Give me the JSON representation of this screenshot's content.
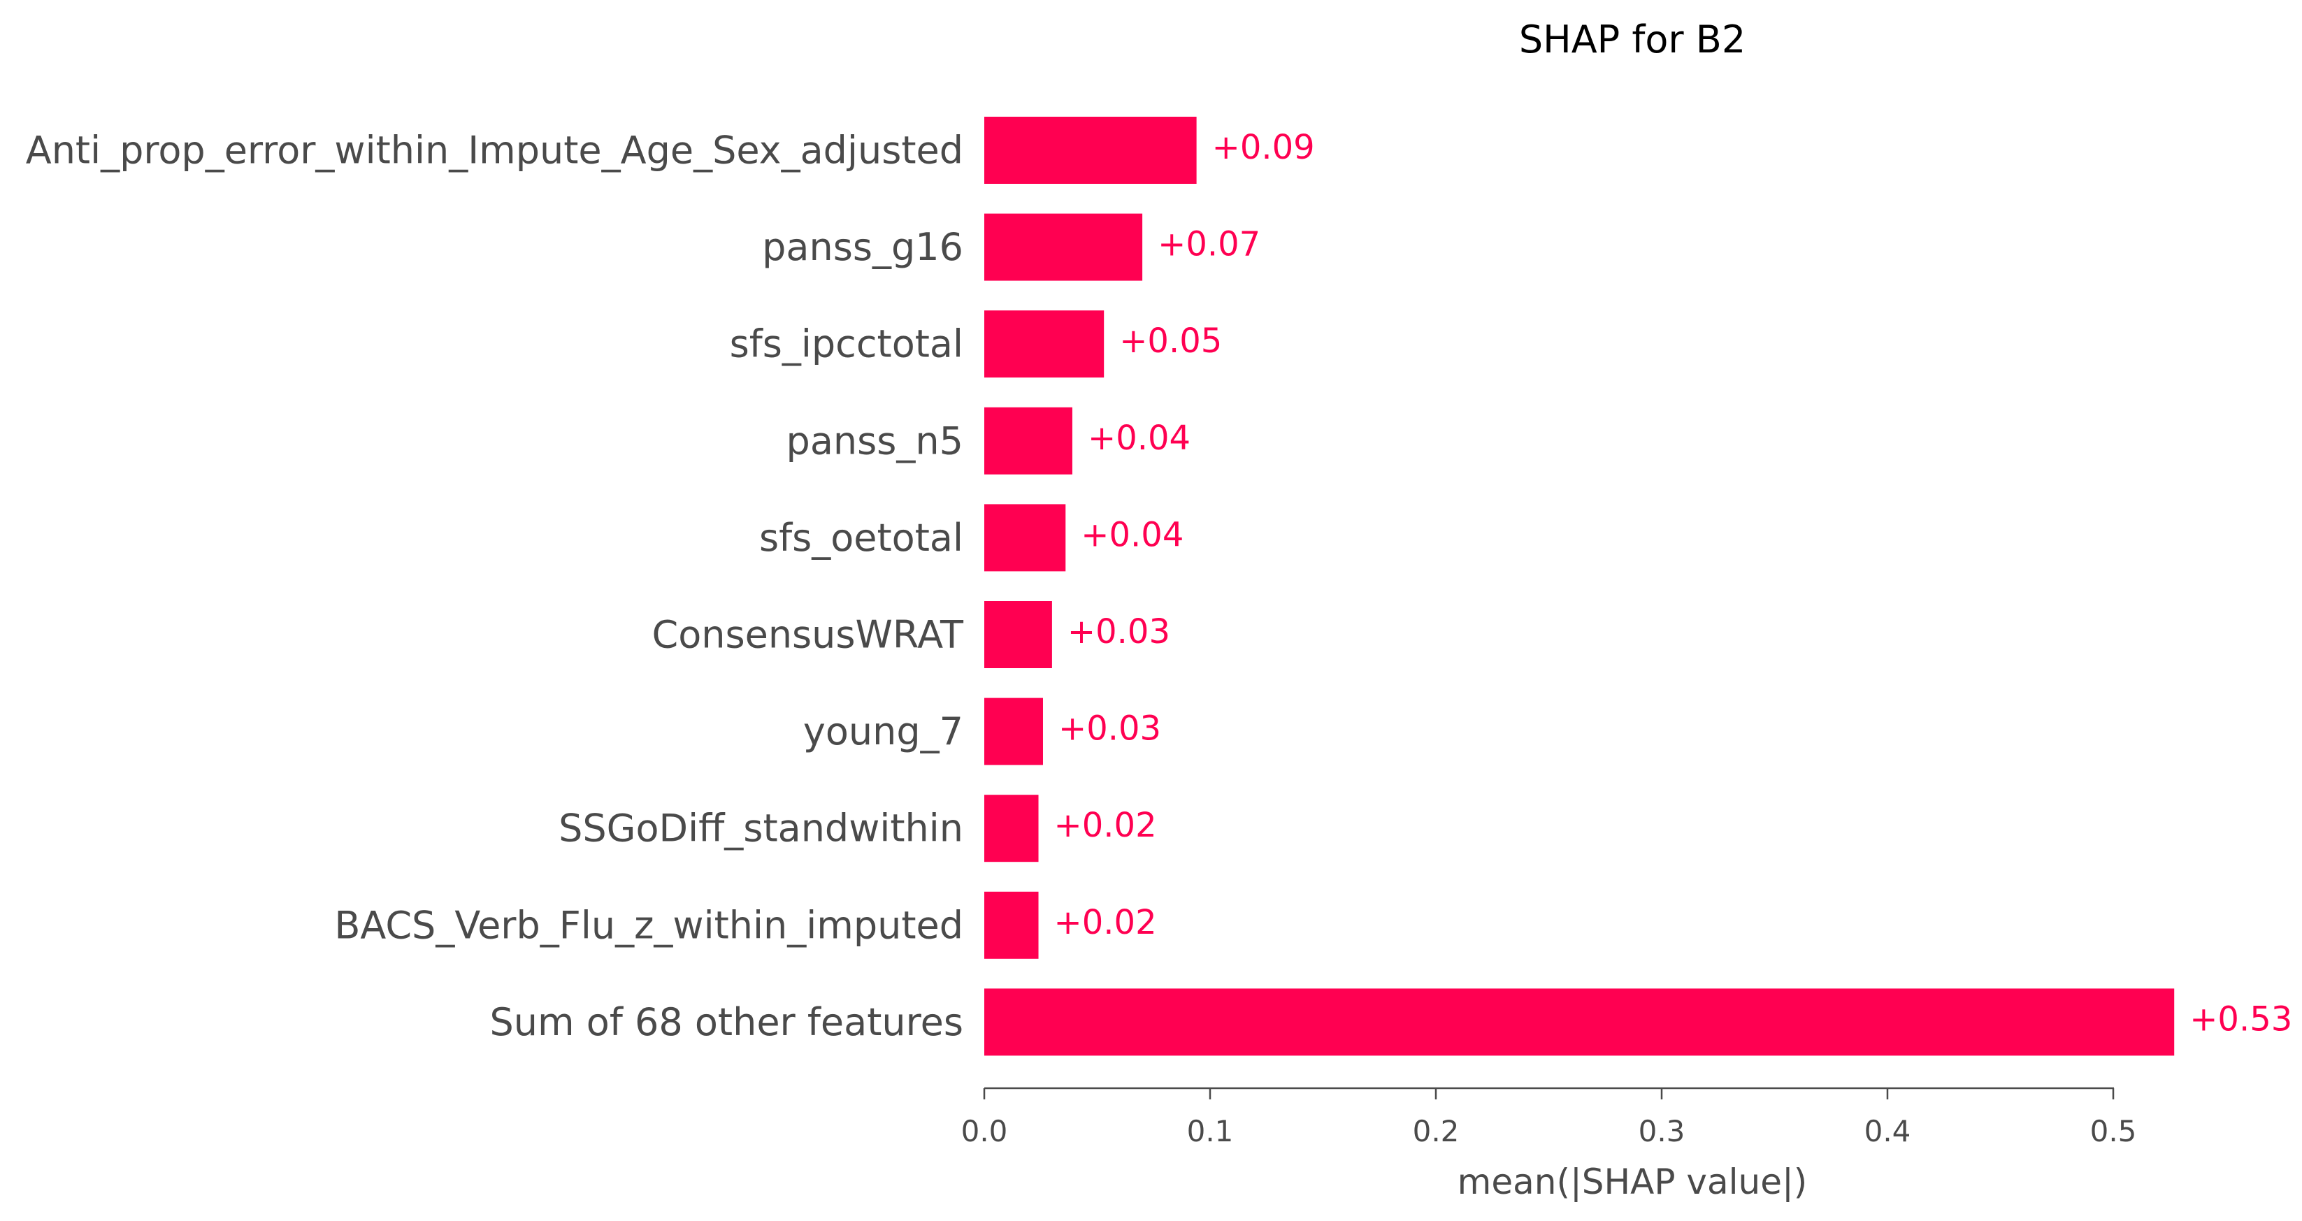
{
  "chart_data": {
    "type": "bar",
    "orientation": "horizontal",
    "title": "SHAP for B2",
    "xlabel": "mean(|SHAP value|)",
    "ylabel": "",
    "xlim": [
      0,
      0.53
    ],
    "xticks": [
      "0.0",
      "0.1",
      "0.2",
      "0.3",
      "0.4",
      "0.5"
    ],
    "xtick_values": [
      0.0,
      0.1,
      0.2,
      0.3,
      0.4,
      0.5
    ],
    "grid": false,
    "legend": "none",
    "bar_color": "#ff0051",
    "label_color": "#ff0051",
    "categories": [
      "Anti_prop_error_within_Impute_Age_Sex_adjusted",
      "panss_g16",
      "sfs_ipcctotal",
      "panss_n5",
      "sfs_oetotal",
      "ConsensusWRAT",
      "young_7",
      "SSGoDiff_standwithin",
      "BACS_Verb_Flu_z_within_imputed",
      "Sum of 68 other features"
    ],
    "values": [
      0.094,
      0.07,
      0.053,
      0.039,
      0.036,
      0.03,
      0.026,
      0.024,
      0.024,
      0.527
    ],
    "value_labels": [
      "+0.09",
      "+0.07",
      "+0.05",
      "+0.04",
      "+0.04",
      "+0.03",
      "+0.03",
      "+0.02",
      "+0.02",
      "+0.53"
    ]
  }
}
